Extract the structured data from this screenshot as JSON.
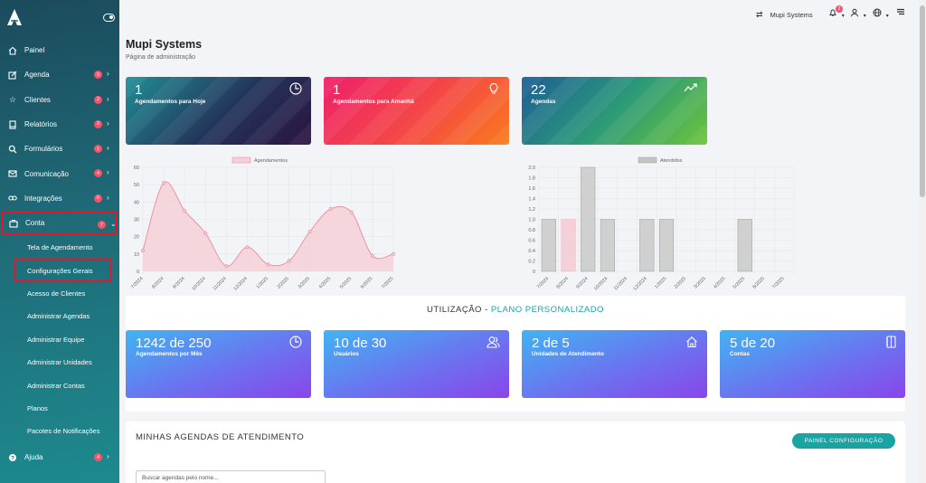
{
  "topbar": {
    "company": "Mupi Systems",
    "notification_count": "2"
  },
  "page": {
    "title": "Mupi Systems",
    "subtitle": "Página de administração"
  },
  "sidebar": {
    "items": [
      {
        "label": "Painel",
        "icon": "home-icon",
        "badge": ""
      },
      {
        "label": "Agenda",
        "icon": "edit-icon",
        "badge": "9"
      },
      {
        "label": "Clientes",
        "icon": "star-icon",
        "badge": "2"
      },
      {
        "label": "Relatórios",
        "icon": "book-icon",
        "badge": "3"
      },
      {
        "label": "Formulários",
        "icon": "search-icon",
        "badge": "1"
      },
      {
        "label": "Comunicação",
        "icon": "mail-icon",
        "badge": "4"
      },
      {
        "label": "Integrações",
        "icon": "link-icon",
        "badge": "6"
      },
      {
        "label": "Conta",
        "icon": "briefcase-icon",
        "badge": "7"
      }
    ],
    "sub_items": [
      "Tela de Agendamento",
      "Configurações Gerais",
      "Acesso de Clientes",
      "Administrar Agendas",
      "Administrar Equipe",
      "Administrar Unidades",
      "Administrar Contas",
      "Planos",
      "Pacotes de Notificações"
    ],
    "help": {
      "label": "Ajuda",
      "icon": "help-icon",
      "badge": "4"
    }
  },
  "cards": [
    {
      "value": "1",
      "label": "Agendamentos para Hoje",
      "icon": "clock-icon"
    },
    {
      "value": "1",
      "label": "Agendamentos para Amanhã",
      "icon": "lightbulb-icon"
    },
    {
      "value": "22",
      "label": "Agendas",
      "icon": "trend-icon"
    }
  ],
  "chart_data": [
    {
      "type": "area",
      "series": [
        {
          "name": "Agendamentos",
          "values": [
            12,
            51,
            35,
            22,
            3,
            14,
            4,
            6,
            23,
            36,
            34,
            9,
            10
          ]
        }
      ],
      "categories": [
        "7/2024",
        "8/2024",
        "9/2024",
        "10/2024",
        "11/2024",
        "12/2024",
        "1/2025",
        "2/2025",
        "3/2025",
        "4/2025",
        "5/2025",
        "6/2025",
        "7/2025"
      ],
      "yticks": [
        "0",
        "10",
        "20",
        "30",
        "40",
        "50",
        "60"
      ],
      "ylim": [
        0,
        60
      ],
      "legend": "top",
      "grid": true,
      "colors": {
        "fill": "#f6d0d8",
        "line": "#e795a6"
      }
    },
    {
      "type": "bar",
      "series": [
        {
          "name": "Atendidos",
          "values": [
            1,
            1,
            2,
            1,
            0,
            1,
            1,
            0,
            0,
            0,
            1,
            0,
            0
          ]
        }
      ],
      "categories": [
        "7/2024",
        "8/2024",
        "9/2024",
        "10/2024",
        "11/2024",
        "12/2024",
        "1/2025",
        "2/2025",
        "3/2025",
        "4/2025",
        "5/2025",
        "6/2025",
        "7/2025"
      ],
      "yticks": [
        "0",
        "0.2",
        "0.4",
        "0.6",
        "0.8",
        "1.0",
        "1.2",
        "1.4",
        "1.6",
        "1.8",
        "2.0"
      ],
      "ylim": [
        0,
        2
      ],
      "legend": "top",
      "grid": true,
      "colors": {
        "bar": "#c4c4c4",
        "bar_stroke": "#9a9a9a",
        "bar_alt": "#f6d0d8"
      }
    }
  ],
  "usage": {
    "title_prefix": "UTILIZAÇÃO - ",
    "plan": "PLANO PERSONALIZADO",
    "cards": [
      {
        "value": "1242 de 250",
        "label": "Agendamentos por Mês",
        "icon": "clock-icon"
      },
      {
        "value": "10 de 30",
        "label": "Usuários",
        "icon": "users-icon"
      },
      {
        "value": "2 de 5",
        "label": "Unidades de Atendimento",
        "icon": "house-icon"
      },
      {
        "value": "5 de 20",
        "label": "Contas",
        "icon": "notebook-icon"
      }
    ]
  },
  "agendas": {
    "title": "MINHAS AGENDAS DE ATENDIMENTO",
    "button": "PAINEL CONFIGURAÇÃO",
    "search_placeholder": "Buscar agendas pelo nome..."
  }
}
